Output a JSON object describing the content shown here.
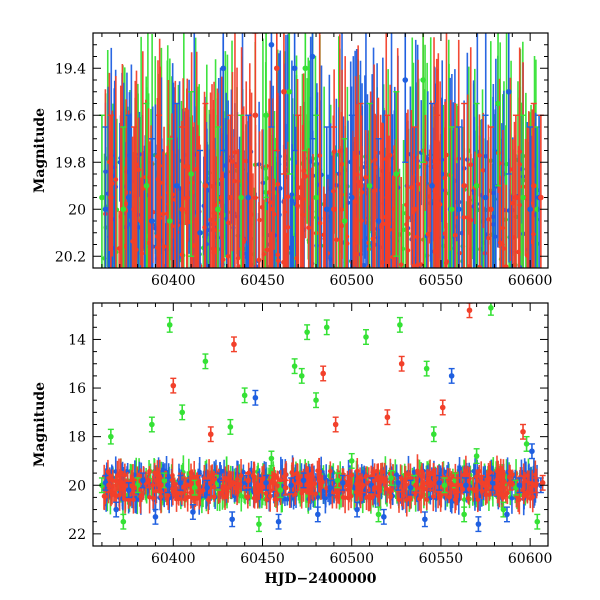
{
  "colors": {
    "green": "#35e135",
    "blue": "#1f5fe0",
    "red": "#f2402a",
    "axis": "#000000",
    "background": "#ffffff"
  },
  "chart_data": [
    {
      "id": "top",
      "type": "scatter",
      "title": "",
      "xlabel": "",
      "ylabel": "Magnitude",
      "xlim": [
        60355,
        60610
      ],
      "ylim": [
        20.25,
        19.25
      ],
      "y_inverted": true,
      "x_ticks": [
        60400,
        60450,
        60500,
        60550,
        60600
      ],
      "x_tick_labels": [
        "60400",
        "60450",
        "60500",
        "60550",
        "60600"
      ],
      "y_ticks": [
        19.4,
        19.6,
        19.8,
        20,
        20.2
      ],
      "y_tick_labels": [
        "19.4",
        "19.6",
        "19.8",
        "20",
        "20.2"
      ],
      "grid": false,
      "legend": "none",
      "series": [
        {
          "color": "green",
          "x": [
            60360,
            60372,
            60385,
            60398,
            60410,
            60425,
            60438,
            60452,
            60465,
            60474,
            60480,
            60496,
            60510,
            60525,
            60540,
            60556,
            60570,
            60582,
            60596,
            60604
          ],
          "y": [
            19.95,
            20.0,
            19.9,
            20.05,
            19.85,
            20.0,
            19.95,
            19.6,
            19.5,
            19.4,
            19.95,
            20.05,
            19.9,
            19.85,
            19.45,
            20.0,
            19.9,
            19.55,
            19.95,
            20.0
          ]
        },
        {
          "color": "blue",
          "x": [
            60362,
            60375,
            60388,
            60402,
            60415,
            60428,
            60442,
            60455,
            60468,
            60478,
            60486,
            60500,
            60515,
            60530,
            60545,
            60560,
            60575,
            60588,
            60600,
            60605
          ],
          "y": [
            20.0,
            19.95,
            20.05,
            19.9,
            20.1,
            19.4,
            19.95,
            19.3,
            19.4,
            19.35,
            20.0,
            19.95,
            20.05,
            19.45,
            19.9,
            20.0,
            19.95,
            19.5,
            20.0,
            19.95
          ]
        },
        {
          "color": "red",
          "x": [
            60365,
            60378,
            60392,
            60405,
            60418,
            60432,
            60446,
            60458,
            60462,
            60470,
            60490,
            60505,
            60520,
            60535,
            60548,
            60563,
            60578,
            60592,
            60602,
            60606
          ],
          "y": [
            19.95,
            20.0,
            19.95,
            20.0,
            19.9,
            19.95,
            19.6,
            19.4,
            19.5,
            19.95,
            20.0,
            19.9,
            19.95,
            20.0,
            19.95,
            19.9,
            20.0,
            19.95,
            19.9,
            19.95
          ]
        }
      ]
    },
    {
      "id": "bottom",
      "type": "scatter",
      "title": "",
      "xlabel": "HJD−2400000",
      "ylabel": "Magnitude",
      "xlim": [
        60355,
        60610
      ],
      "ylim": [
        22.5,
        12.5
      ],
      "y_inverted": true,
      "x_ticks": [
        60400,
        60450,
        60500,
        60550,
        60600
      ],
      "x_tick_labels": [
        "60400",
        "60450",
        "60500",
        "60550",
        "60600"
      ],
      "y_ticks": [
        14,
        16,
        18,
        20,
        22
      ],
      "y_tick_labels": [
        "14",
        "16",
        "18",
        "20",
        "22"
      ],
      "grid": false,
      "legend": "none",
      "series": [
        {
          "color": "green",
          "x": [
            60360,
            60365,
            60372,
            60380,
            60388,
            60395,
            60398,
            60405,
            60412,
            60418,
            60425,
            60432,
            60440,
            60448,
            60455,
            60460,
            60468,
            60472,
            60475,
            60480,
            60486,
            60492,
            60500,
            60508,
            60515,
            60522,
            60527,
            60535,
            60542,
            60546,
            60552,
            60558,
            60563,
            60570,
            60578,
            60585,
            60592,
            60598,
            60604
          ],
          "y": [
            20.0,
            18.0,
            21.5,
            20.0,
            17.5,
            19.8,
            13.4,
            17.0,
            20.1,
            14.9,
            19.9,
            17.6,
            16.3,
            21.6,
            18.9,
            20.2,
            15.1,
            15.5,
            13.7,
            16.5,
            13.5,
            19.8,
            19.0,
            13.9,
            21.2,
            19.7,
            13.4,
            19.9,
            15.2,
            17.9,
            20.0,
            19.8,
            21.2,
            18.8,
            12.7,
            21.0,
            20.1,
            18.3,
            21.5
          ]
        },
        {
          "color": "blue",
          "x": [
            60362,
            60368,
            60375,
            60383,
            60390,
            60397,
            60404,
            60411,
            60419,
            60426,
            60433,
            60441,
            60446,
            60452,
            60459,
            60466,
            60473,
            60481,
            60488,
            60495,
            60503,
            60511,
            60518,
            60526,
            60533,
            60541,
            60549,
            60556,
            60564,
            60571,
            60579,
            60587,
            60594,
            60601,
            60606
          ],
          "y": [
            19.9,
            21.0,
            20.2,
            19.8,
            21.3,
            20.0,
            19.9,
            21.1,
            20.1,
            19.8,
            21.4,
            19.9,
            16.4,
            19.9,
            21.5,
            20.0,
            19.8,
            21.2,
            20.1,
            19.9,
            21.0,
            20.0,
            21.3,
            19.9,
            20.1,
            21.4,
            19.9,
            15.5,
            20.0,
            21.6,
            19.9,
            21.2,
            20.0,
            18.6,
            20.0
          ]
        },
        {
          "color": "red",
          "x": [
            60364,
            60370,
            60378,
            60386,
            60393,
            60400,
            60407,
            60414,
            60421,
            60428,
            60434,
            60442,
            60449,
            60456,
            60463,
            60470,
            60477,
            60484,
            60491,
            60498,
            60506,
            60513,
            60520,
            60528,
            60536,
            60544,
            60551,
            60559,
            60566,
            60573,
            60581,
            60589,
            60596,
            60603,
            60607
          ],
          "y": [
            20.0,
            19.9,
            20.1,
            19.8,
            20.0,
            15.9,
            20.0,
            19.9,
            17.9,
            20.1,
            14.2,
            19.8,
            20.0,
            19.9,
            20.1,
            19.9,
            20.0,
            15.4,
            17.5,
            19.9,
            20.0,
            20.1,
            17.2,
            15.0,
            20.0,
            19.9,
            16.8,
            20.0,
            12.8,
            19.9,
            20.1,
            19.9,
            17.8,
            20.0,
            19.9
          ]
        }
      ]
    }
  ]
}
